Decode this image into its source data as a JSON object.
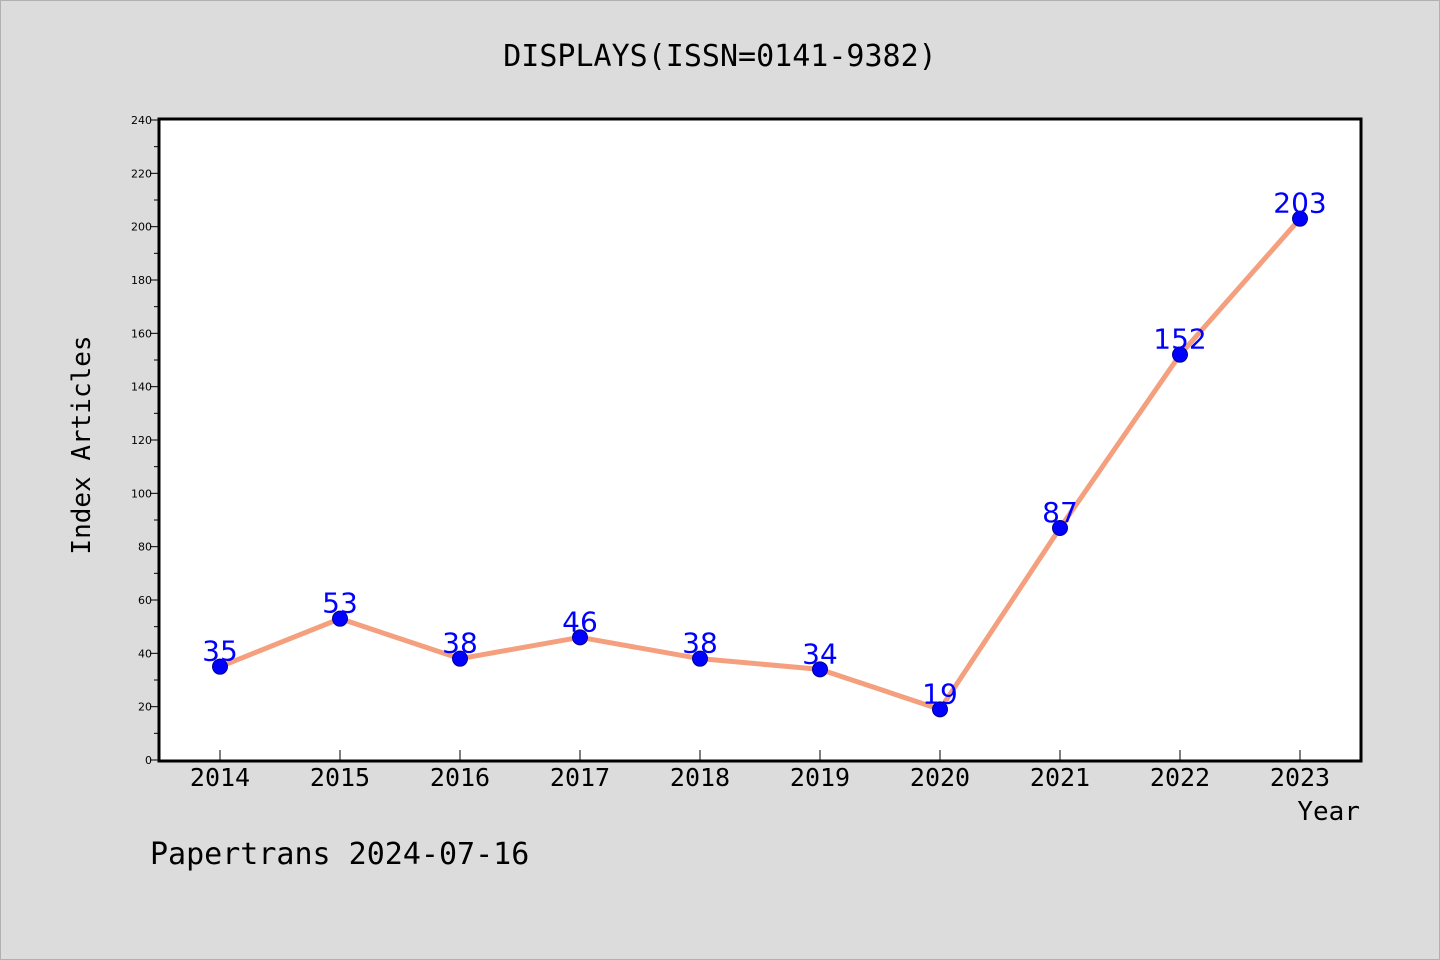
{
  "chart_data": {
    "type": "line",
    "title": "DISPLAYS(ISSN=0141-9382)",
    "xlabel": "Year",
    "ylabel": "Index Articles",
    "categories": [
      "2014",
      "2015",
      "2016",
      "2017",
      "2018",
      "2019",
      "2020",
      "2021",
      "2022",
      "2023"
    ],
    "values": [
      35,
      53,
      38,
      46,
      38,
      34,
      19,
      87,
      152,
      203
    ],
    "ylim": [
      0,
      240
    ],
    "yticks": [
      0,
      20,
      40,
      60,
      80,
      100,
      120,
      140,
      160,
      180,
      200,
      220,
      240
    ],
    "grid": false,
    "line_color": "#f4a07e",
    "marker_color": "#0000ff",
    "label_color": "#0000ff"
  },
  "footer": "Papertrans 2024-07-16"
}
